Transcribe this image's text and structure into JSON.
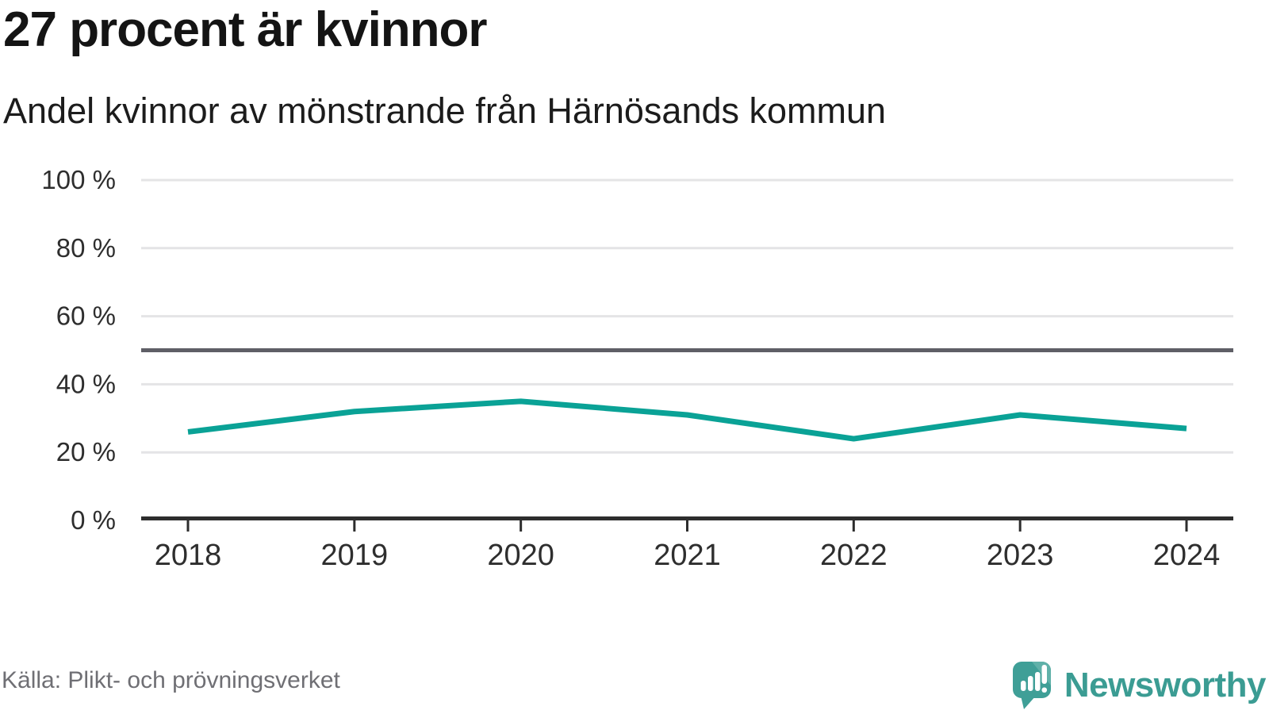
{
  "header": {
    "title": "27 procent är kvinnor",
    "subtitle": "Andel kvinnor av mönstrande från Härnösands kommun"
  },
  "chart_data": {
    "type": "line",
    "x": [
      2018,
      2019,
      2020,
      2021,
      2022,
      2023,
      2024
    ],
    "series": [
      {
        "name": "Andel kvinnor av mönstrande",
        "values": [
          26,
          32,
          35,
          31,
          24,
          31,
          27
        ]
      }
    ],
    "title": "27 procent är kvinnor",
    "subtitle": "Andel kvinnor av mönstrande från Härnösands kommun",
    "xlabel": "",
    "ylabel": "",
    "ylim": [
      0,
      100
    ],
    "yticks": [
      0,
      20,
      40,
      60,
      80,
      100
    ],
    "ytick_suffix": " %",
    "reference_line": 50,
    "grid": true,
    "legend": "none"
  },
  "footer": {
    "source": "Källa: Plikt- och prövningsverket",
    "brand": "Newsworthy"
  },
  "colors": {
    "accent_line": "#0aa296",
    "reference_line": "#5f5f66",
    "gridline": "#e4e4e6",
    "axis": "#2d2d2d",
    "axis_label": "#2e2e2e",
    "logo_teal": "#3f9f97",
    "logo_teal_light": "#60b1a9",
    "brand_text": "#3b9c93"
  }
}
